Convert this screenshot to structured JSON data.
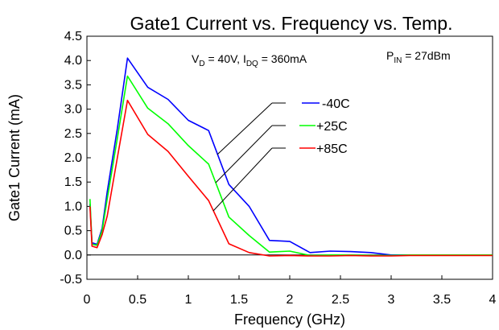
{
  "chart_data": {
    "type": "line",
    "title": "Gate1 Current vs. Frequency vs. Temp.",
    "xlabel": "Frequency (GHz)",
    "ylabel": "Gate1 Current (mA)",
    "xlim": [
      0,
      4
    ],
    "ylim": [
      -0.5,
      4.5
    ],
    "xticks": [
      "0",
      "0.5",
      "1",
      "1.5",
      "2",
      "2.5",
      "3",
      "3.5",
      "4"
    ],
    "yticks": [
      "-0.5",
      "0.0",
      "0.5",
      "1.0",
      "1.5",
      "2.0",
      "2.5",
      "3.0",
      "3.5",
      "4.0",
      "4.5"
    ],
    "grid": false,
    "annotations": {
      "bias": {
        "v": "V",
        "v_sub": "D",
        "v_rest": " = 40V, I",
        "i_sub": "DQ",
        "i_rest": " = 360mA"
      },
      "pin": {
        "p": "P",
        "p_sub": "IN",
        "p_rest": " = 27dBm"
      }
    },
    "series": [
      {
        "name": "-40C",
        "color": "#0000ff",
        "x": [
          0.03,
          0.05,
          0.1,
          0.15,
          0.2,
          0.3,
          0.4,
          0.6,
          0.8,
          1.0,
          1.2,
          1.4,
          1.6,
          1.8,
          2.0,
          2.2,
          2.4,
          2.6,
          2.8,
          3.0,
          3.2,
          3.4,
          3.6,
          3.8,
          4.0
        ],
        "y": [
          1.05,
          0.25,
          0.22,
          0.55,
          1.3,
          2.6,
          4.05,
          3.45,
          3.2,
          2.77,
          2.56,
          1.45,
          1.0,
          0.3,
          0.28,
          0.05,
          0.08,
          0.07,
          0.05,
          0.0,
          0.0,
          0.0,
          0.0,
          0.0,
          0.0
        ]
      },
      {
        "name": "+25C",
        "color": "#00ff00",
        "x": [
          0.03,
          0.05,
          0.1,
          0.15,
          0.2,
          0.3,
          0.4,
          0.6,
          0.8,
          1.0,
          1.2,
          1.4,
          1.6,
          1.8,
          2.0,
          2.2,
          2.4,
          2.6,
          2.8,
          3.0,
          3.2,
          3.4,
          3.6,
          3.8,
          4.0
        ],
        "y": [
          1.15,
          0.22,
          0.2,
          0.5,
          1.15,
          2.4,
          3.68,
          3.02,
          2.7,
          2.25,
          1.87,
          0.78,
          0.4,
          0.06,
          0.08,
          -0.01,
          0.0,
          0.0,
          -0.01,
          -0.01,
          0.0,
          0.0,
          0.0,
          0.0,
          0.0
        ]
      },
      {
        "name": "+85C",
        "color": "#ff0000",
        "x": [
          0.03,
          0.05,
          0.1,
          0.15,
          0.2,
          0.3,
          0.4,
          0.6,
          0.8,
          1.0,
          1.2,
          1.4,
          1.6,
          1.8,
          2.0,
          2.2,
          2.4,
          2.6,
          2.8,
          3.0,
          3.2,
          3.4,
          3.6,
          3.8,
          4.0
        ],
        "y": [
          1.0,
          0.18,
          0.15,
          0.42,
          0.8,
          2.0,
          3.18,
          2.48,
          2.13,
          1.62,
          1.12,
          0.23,
          0.05,
          -0.02,
          -0.01,
          -0.02,
          -0.02,
          -0.01,
          -0.02,
          -0.02,
          -0.01,
          -0.01,
          -0.01,
          -0.01,
          -0.01
        ]
      }
    ]
  }
}
